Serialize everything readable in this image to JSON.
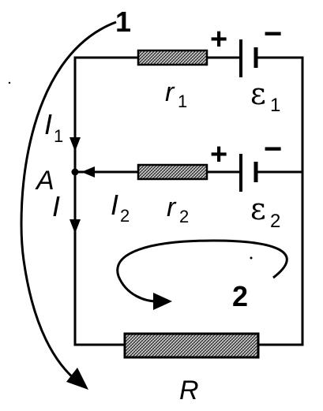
{
  "diagram": {
    "loop_1": "1",
    "loop_2": "2",
    "junction": "A",
    "current_total": "I",
    "current_1": {
      "letter": "I",
      "sub": "1"
    },
    "current_2": {
      "letter": "I",
      "sub": "2"
    },
    "resistor_r1": {
      "letter": "r",
      "sub": "1"
    },
    "resistor_r2": {
      "letter": "r",
      "sub": "2"
    },
    "emf_1": {
      "letter": "ε",
      "sub": "1"
    },
    "emf_2": {
      "letter": "ε",
      "sub": "2"
    },
    "resistor_R": "R",
    "plus_sign": "+",
    "minus_sign": "−"
  }
}
